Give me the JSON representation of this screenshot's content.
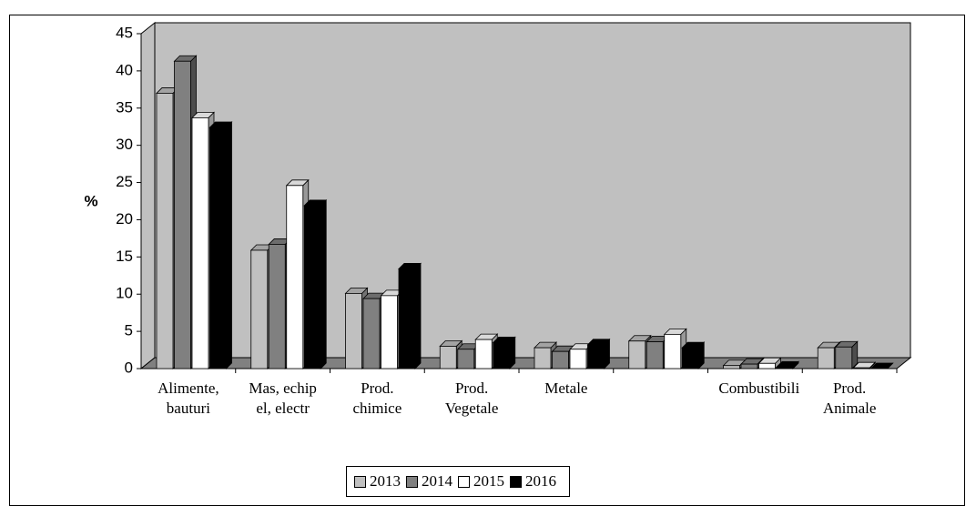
{
  "chart_data": {
    "type": "bar",
    "y_label": "%",
    "categories": [
      "Alimente, bauturi",
      "Mas, echip el, electr",
      "Prod. chimice",
      "Prod. Vegetale",
      "Metale",
      null,
      "Combustibili",
      "Prod. Animale"
    ],
    "series": [
      {
        "name": "2013",
        "color": "#c0c0c0",
        "values": [
          37,
          15.9,
          10.1,
          3,
          2.8,
          3.7,
          0.4,
          2.8
        ]
      },
      {
        "name": "2014",
        "color": "#808080",
        "values": [
          41.3,
          16.7,
          9.4,
          2.6,
          2.3,
          3.6,
          0.6,
          2.9
        ]
      },
      {
        "name": "2015",
        "color": "#ffffff",
        "values": [
          33.7,
          24.6,
          9.8,
          3.9,
          2.6,
          4.6,
          0.7,
          0.1
        ]
      },
      {
        "name": "2016",
        "color": "#000000",
        "values": [
          32.4,
          21.9,
          13.4,
          3.5,
          3.2,
          2.8,
          0.2,
          0
        ]
      }
    ],
    "ylim": [
      0,
      45
    ],
    "yticks": [
      0,
      5,
      10,
      15,
      20,
      25,
      30,
      35,
      40,
      45
    ],
    "grid": false,
    "legend": "bottom"
  }
}
